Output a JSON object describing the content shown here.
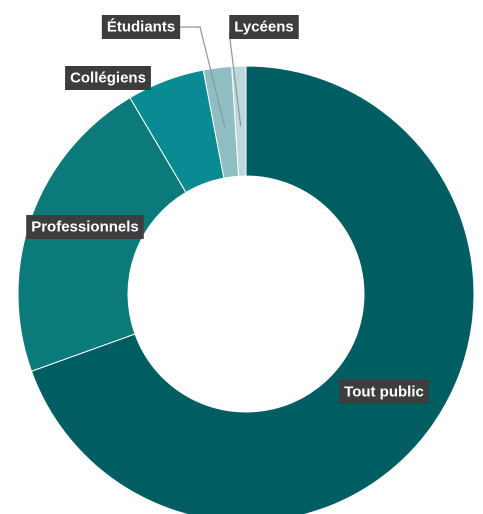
{
  "chart_data": {
    "type": "pie",
    "variant": "donut",
    "title": "",
    "legend": "none",
    "categories": [
      "Tout public",
      "Professionnels",
      "Collégiens",
      "Étudiants",
      "Lycéens"
    ],
    "values": [
      69.5,
      22.0,
      5.5,
      2.0,
      1.0
    ],
    "unit": "%",
    "start_angle_deg": 0,
    "direction": "clockwise",
    "colors": [
      "#005e63",
      "#0b7a7b",
      "#0a8a93",
      "#8ebec1",
      "#bcd8db"
    ],
    "label_position": [
      "inside",
      "inside",
      "outside",
      "outside",
      "outside"
    ]
  }
}
